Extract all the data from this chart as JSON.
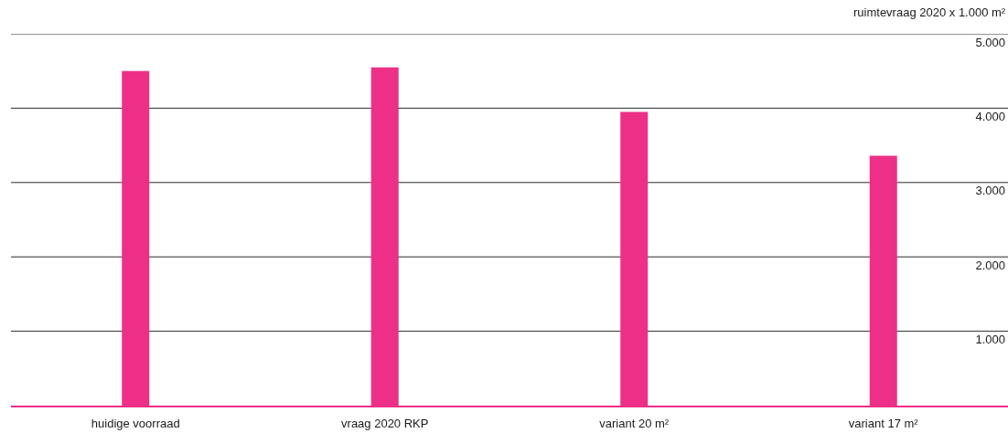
{
  "chart_data": {
    "type": "bar",
    "ylabel": "ruimtevraag 2020 x 1.000 m²",
    "categories": [
      "huidige voorraad",
      "vraag 2020 RKP",
      "variant 20 m²",
      "variant 17 m²"
    ],
    "values": [
      4500,
      4550,
      3950,
      3360
    ],
    "color": "#ed2f87",
    "ylim": [
      0,
      5000
    ],
    "yticks": [
      {
        "value": 1000,
        "label": "1.000"
      },
      {
        "value": 2000,
        "label": "2.000"
      },
      {
        "value": 3000,
        "label": "3.000"
      },
      {
        "value": 4000,
        "label": "4.000"
      },
      {
        "value": 5000,
        "label": "5.000"
      }
    ],
    "grid": "y"
  }
}
